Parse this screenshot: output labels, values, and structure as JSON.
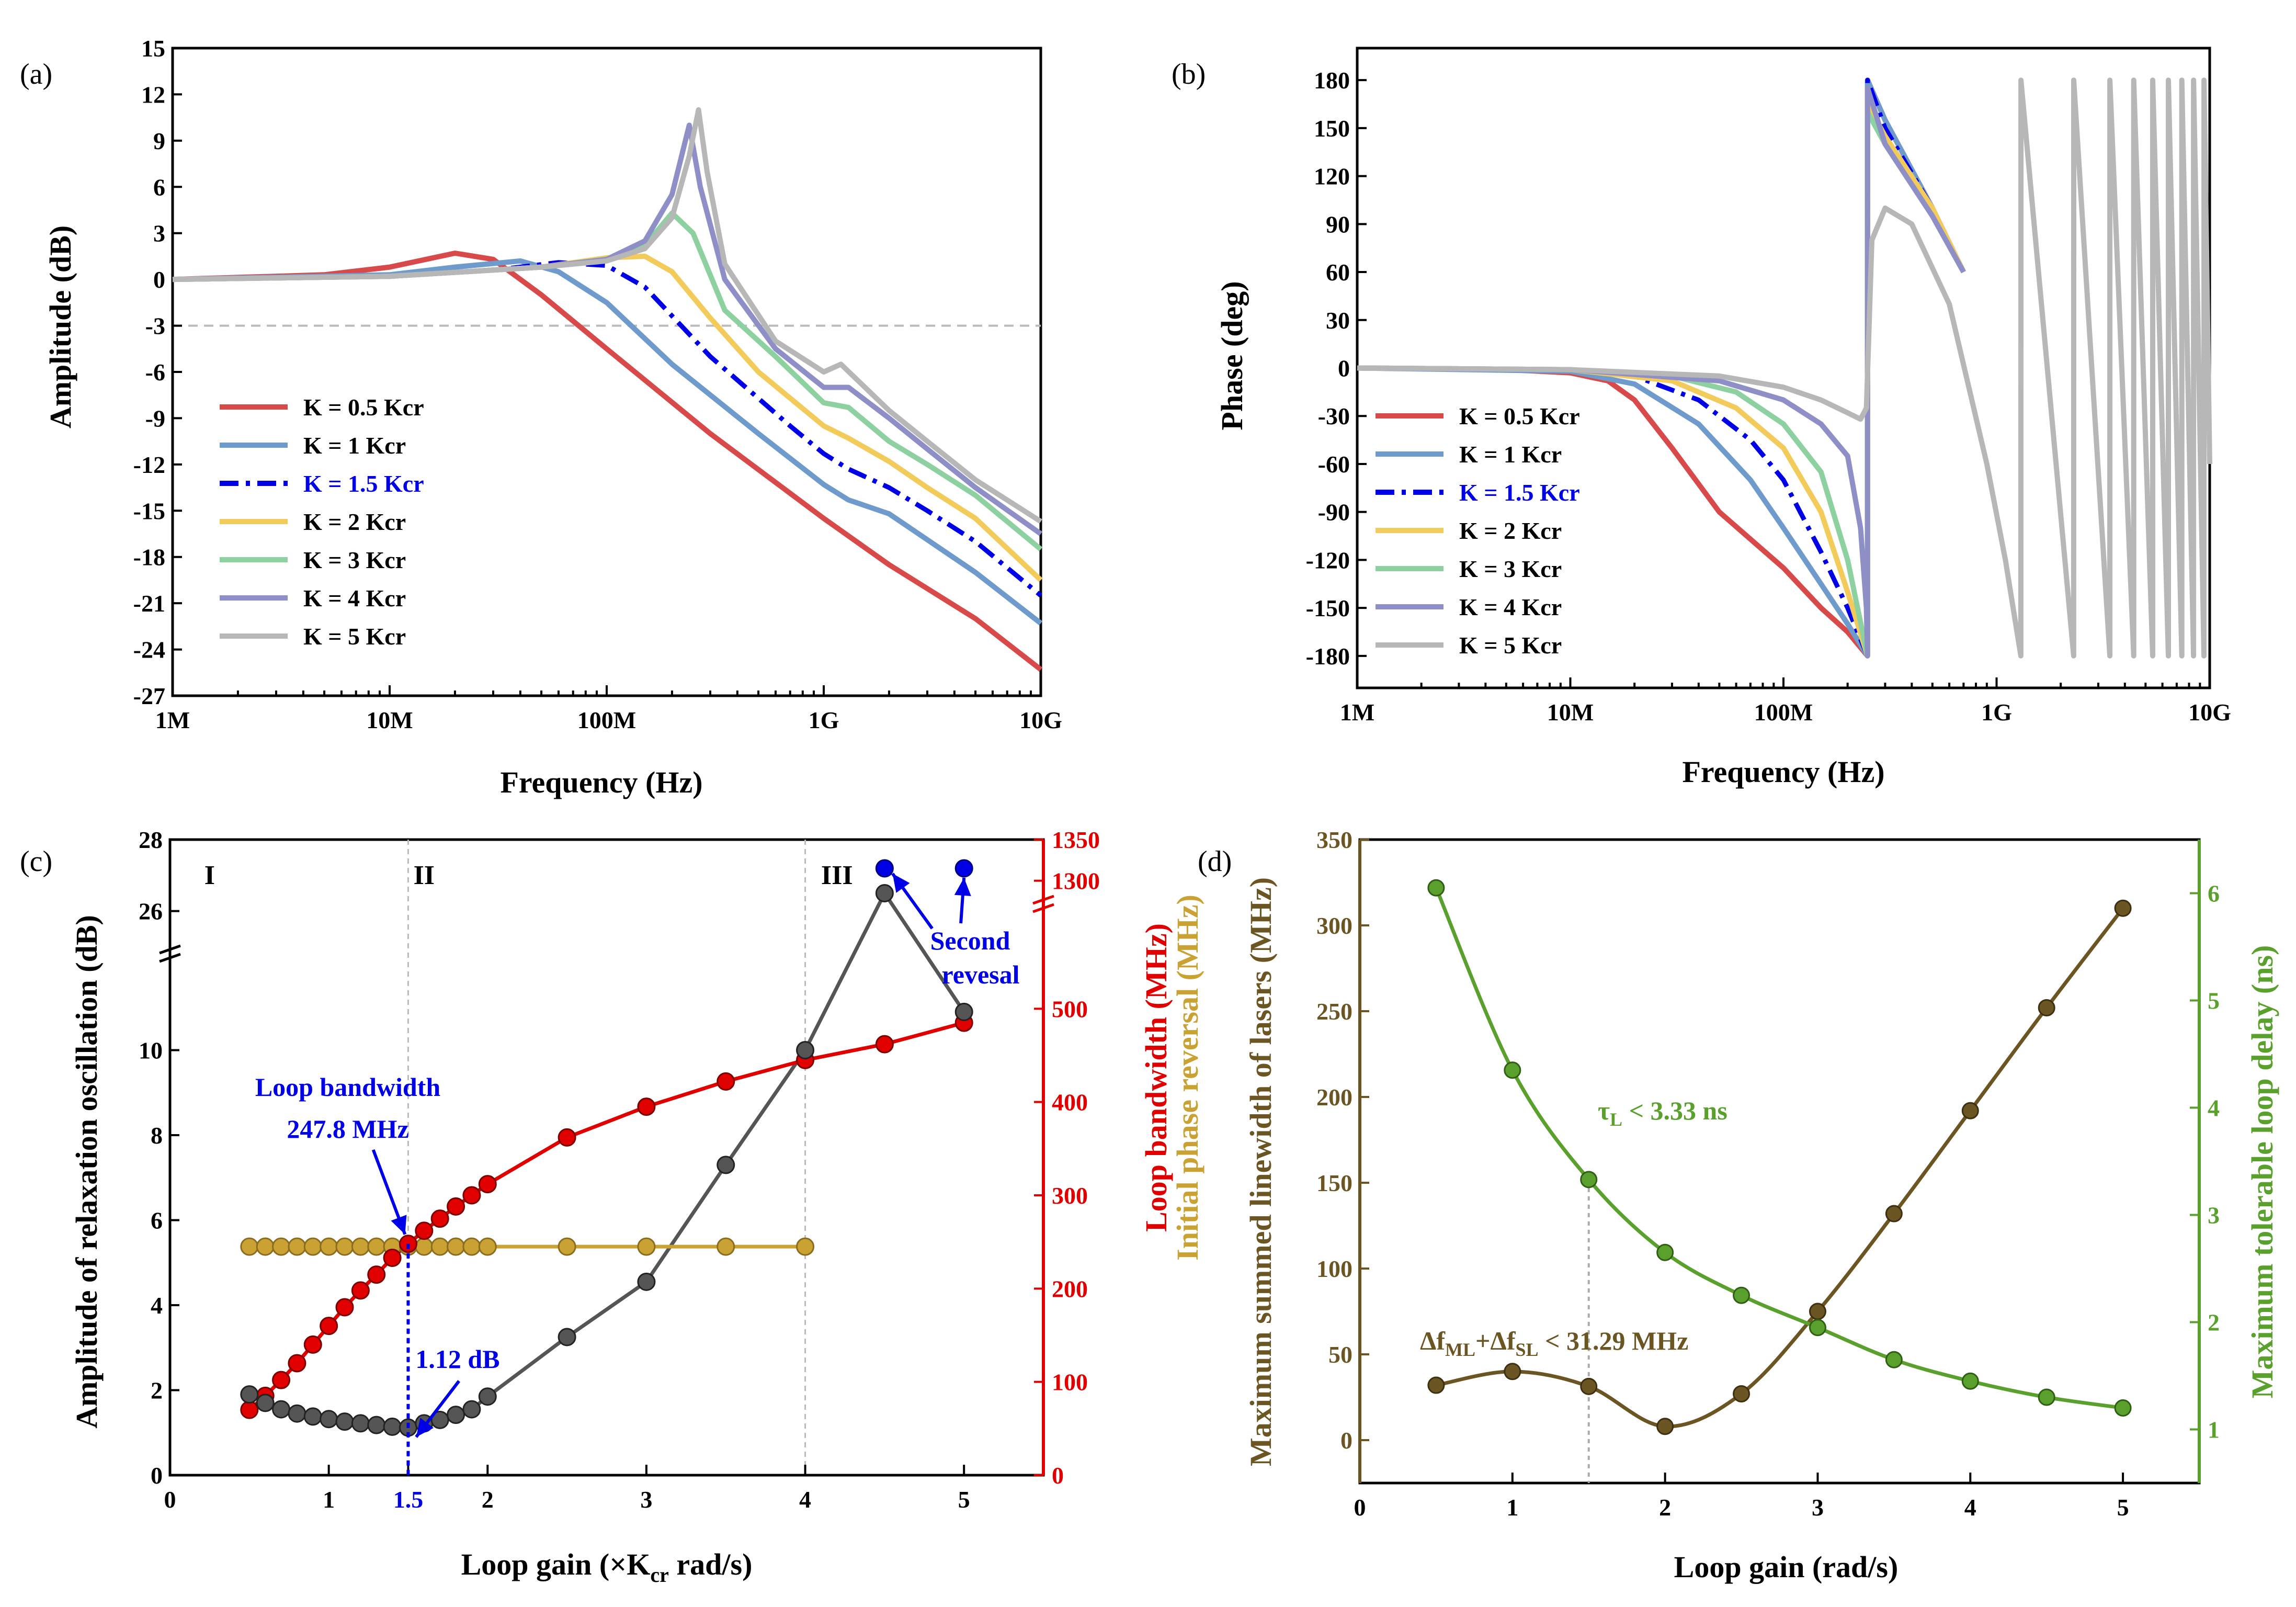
{
  "colors": {
    "red": "#d84a4a",
    "steel": "#6e9bcc",
    "blue": "#0000e6",
    "gold": "#f2cb5a",
    "green": "#8ed1a0",
    "purple": "#8f8fc8",
    "gray": "#b7b7b7",
    "darkgray": "#555555",
    "darkred": "#e00000",
    "mustard": "#c9a233",
    "olive": "#6b5522",
    "leaf": "#5aa02c"
  },
  "chart_data": [
    {
      "type": "line",
      "panel_label": "(a)",
      "title": "",
      "xlabel": "Frequency (Hz)",
      "ylabel": "Amplitude (dB)",
      "xscale": "log",
      "xlim": [
        1000000,
        10000000000
      ],
      "ylim": [
        -27,
        15
      ],
      "xticks": [
        {
          "value": 1000000,
          "label": "1M"
        },
        {
          "value": 10000000,
          "label": "10M"
        },
        {
          "value": 100000000,
          "label": "100M"
        },
        {
          "value": 1000000000,
          "label": "1G"
        },
        {
          "value": 10000000000,
          "label": "10G"
        }
      ],
      "yticks": [
        15,
        12,
        9,
        6,
        3,
        0,
        -3,
        -6,
        -9,
        -12,
        -15,
        -18,
        -21,
        -24,
        -27
      ],
      "reference_line": {
        "y": -3,
        "style": "dashed"
      },
      "legend_position": "lower-left",
      "series": [
        {
          "name": "K = 0.5 Kcr",
          "color_key": "red",
          "dash": "solid",
          "x": [
            1000000,
            5000000,
            10000000,
            20000000,
            30000000,
            50000000,
            100000000,
            300000000,
            1000000000,
            2000000000,
            5000000000,
            10000000000
          ],
          "y": [
            0,
            0.3,
            0.8,
            1.7,
            1.3,
            -1,
            -4.5,
            -10,
            -15.5,
            -18.5,
            -22,
            -25.3
          ]
        },
        {
          "name": "K = 1 Kcr",
          "color_key": "steel",
          "dash": "solid",
          "x": [
            1000000,
            10000000,
            20000000,
            40000000,
            60000000,
            100000000,
            200000000,
            500000000,
            1000000000,
            1300000000,
            2000000000,
            5000000000,
            10000000000
          ],
          "y": [
            0,
            0.3,
            0.8,
            1.2,
            0.5,
            -1.5,
            -5.5,
            -10,
            -13.3,
            -14.3,
            -15.2,
            -19,
            -22.3
          ]
        },
        {
          "name": "K = 1.5 Kcr",
          "color_key": "blue",
          "dash": "dashdot",
          "x": [
            1000000,
            10000000,
            30000000,
            60000000,
            100000000,
            150000000,
            300000000,
            700000000,
            1000000000,
            1300000000,
            2000000000,
            3000000000,
            5000000000,
            10000000000
          ],
          "y": [
            0,
            0.2,
            0.6,
            1.1,
            0.9,
            -0.5,
            -5,
            -9.5,
            -11.3,
            -12.3,
            -13.5,
            -15,
            -17,
            -20.5
          ]
        },
        {
          "name": "K = 2 Kcr",
          "color_key": "gold",
          "dash": "solid",
          "x": [
            1000000,
            10000000,
            50000000,
            100000000,
            150000000,
            200000000,
            300000000,
            500000000,
            1000000000,
            1300000000,
            2000000000,
            3000000000,
            5000000000,
            10000000000
          ],
          "y": [
            0,
            0.2,
            0.8,
            1.4,
            1.5,
            0.5,
            -2.5,
            -6,
            -9.5,
            -10.3,
            -11.8,
            -13.5,
            -15.5,
            -19.5
          ]
        },
        {
          "name": "K = 3 Kcr",
          "color_key": "green",
          "dash": "solid",
          "x": [
            1000000,
            10000000,
            50000000,
            100000000,
            150000000,
            200000000,
            250000000,
            350000000,
            600000000,
            1000000000,
            1300000000,
            2000000000,
            3000000000,
            5000000000,
            10000000000
          ],
          "y": [
            0,
            0.2,
            0.8,
            1.3,
            2.2,
            4.3,
            3,
            -2,
            -5,
            -8,
            -8.3,
            -10.5,
            -12,
            -14,
            -17.5
          ]
        },
        {
          "name": "K = 4 Kcr",
          "color_key": "purple",
          "dash": "solid",
          "x": [
            1000000,
            10000000,
            50000000,
            100000000,
            150000000,
            200000000,
            240000000,
            270000000,
            350000000,
            600000000,
            1000000000,
            1300000000,
            2000000000,
            3000000000,
            5000000000,
            10000000000
          ],
          "y": [
            0,
            0.2,
            0.8,
            1.3,
            2.5,
            5.5,
            10,
            6,
            0,
            -4.5,
            -7,
            -7,
            -9,
            -11,
            -13.5,
            -16.5
          ]
        },
        {
          "name": "K = 5 Kcr",
          "color_key": "gray",
          "dash": "solid",
          "x": [
            1000000,
            10000000,
            50000000,
            100000000,
            150000000,
            200000000,
            240000000,
            265000000,
            290000000,
            350000000,
            600000000,
            1000000000,
            1200000000,
            2000000000,
            3000000000,
            5000000000,
            10000000000
          ],
          "y": [
            0,
            0.2,
            0.8,
            1.2,
            2,
            4,
            8,
            11,
            7,
            1,
            -4,
            -6,
            -5.5,
            -8.5,
            -10.5,
            -13,
            -15.7
          ]
        }
      ]
    },
    {
      "type": "line",
      "panel_label": "(b)",
      "title": "",
      "xlabel": "Frequency (Hz)",
      "ylabel": "Phase (deg)",
      "xscale": "log",
      "xlim": [
        1000000,
        10000000000
      ],
      "ylim": [
        -200,
        200
      ],
      "xticks": [
        {
          "value": 1000000,
          "label": "1M"
        },
        {
          "value": 10000000,
          "label": "10M"
        },
        {
          "value": 100000000,
          "label": "100M"
        },
        {
          "value": 1000000000,
          "label": "1G"
        },
        {
          "value": 10000000000,
          "label": "10G"
        }
      ],
      "yticks": [
        180,
        150,
        120,
        90,
        60,
        30,
        0,
        -30,
        -60,
        -90,
        -120,
        -150,
        -180
      ],
      "legend_position": "lower-left",
      "series": [
        {
          "name": "K = 0.5 Kcr",
          "color_key": "red",
          "dash": "solid",
          "x": [
            1000000,
            5000000,
            10000000,
            15000000,
            20000000,
            30000000,
            50000000,
            100000000,
            150000000,
            200000000,
            248000000,
            248100000,
            300000000,
            500000000,
            700000000
          ],
          "y": [
            0,
            -1,
            -3,
            -8,
            -20,
            -50,
            -90,
            -125,
            -150,
            -165,
            -180,
            180,
            155,
            100,
            60
          ]
        },
        {
          "name": "K = 1 Kcr",
          "color_key": "steel",
          "dash": "solid",
          "x": [
            1000000,
            10000000,
            20000000,
            40000000,
            70000000,
            100000000,
            150000000,
            200000000,
            248000000,
            248100000,
            300000000,
            500000000,
            700000000
          ],
          "y": [
            0,
            -2,
            -10,
            -35,
            -70,
            -100,
            -135,
            -160,
            -180,
            180,
            155,
            100,
            60
          ]
        },
        {
          "name": "K = 1.5 Kcr",
          "color_key": "blue",
          "dash": "dashdot",
          "x": [
            1000000,
            10000000,
            20000000,
            40000000,
            70000000,
            100000000,
            150000000,
            200000000,
            248000000,
            248100000,
            300000000,
            500000000,
            700000000
          ],
          "y": [
            0,
            -1,
            -5,
            -20,
            -45,
            -70,
            -115,
            -150,
            -180,
            180,
            150,
            100,
            60
          ]
        },
        {
          "name": "K = 2 Kcr",
          "color_key": "gold",
          "dash": "solid",
          "x": [
            1000000,
            10000000,
            30000000,
            60000000,
            100000000,
            150000000,
            200000000,
            248000000,
            248100000,
            300000000,
            500000000,
            700000000
          ],
          "y": [
            0,
            -1,
            -8,
            -25,
            -50,
            -90,
            -140,
            -180,
            165,
            145,
            100,
            60
          ]
        },
        {
          "name": "K = 3 Kcr",
          "color_key": "green",
          "dash": "solid",
          "x": [
            1000000,
            10000000,
            30000000,
            60000000,
            100000000,
            150000000,
            200000000,
            248000000,
            248100000,
            300000000,
            500000000,
            700000000
          ],
          "y": [
            0,
            -1,
            -5,
            -15,
            -35,
            -65,
            -120,
            -180,
            160,
            140,
            95,
            60
          ]
        },
        {
          "name": "K = 4 Kcr",
          "color_key": "purple",
          "dash": "solid",
          "x": [
            1000000,
            10000000,
            50000000,
            100000000,
            150000000,
            200000000,
            230000000,
            245000000,
            248000000,
            248100000,
            300000000,
            500000000,
            700000000
          ],
          "y": [
            0,
            -1,
            -8,
            -20,
            -35,
            -55,
            -100,
            -150,
            -180,
            175,
            140,
            95,
            60
          ]
        },
        {
          "name": "K = 5 Kcr",
          "color_key": "gray",
          "dash": "solid",
          "x": [
            1000000,
            10000000,
            50000000,
            100000000,
            150000000,
            200000000,
            230000000,
            245000000,
            260000000,
            300000000,
            400000000,
            600000000,
            900000000,
            1100000000,
            1300000000,
            1301000000,
            2300000000,
            2301000000,
            3400000000,
            3401000000,
            4400000000,
            4401000000,
            5400000000,
            5401000000,
            6400000000,
            6401000000,
            7400000000,
            7401000000,
            8400000000,
            8401000000,
            9400000000,
            9401000000,
            10000000000
          ],
          "y": [
            0,
            -1,
            -5,
            -12,
            -20,
            -28,
            -32,
            -25,
            80,
            100,
            90,
            40,
            -60,
            -120,
            -180,
            180,
            -180,
            180,
            -180,
            180,
            -180,
            180,
            -180,
            180,
            -180,
            180,
            -180,
            180,
            -180,
            180,
            -180,
            180,
            -60
          ]
        }
      ]
    },
    {
      "type": "scatter",
      "panel_label": "(c)",
      "title": "",
      "xlabel": "Loop gain (×K",
      "xlabel_sub": "cr",
      "xlabel_tail": " rad/s)",
      "ylabel_left": "Amplitude of relaxation oscillation (dB)",
      "ylabel_right_1": "Loop bandwidth (MHz)",
      "ylabel_right_2": "Initial phase reversal (MHz)",
      "xlim": [
        0,
        5.5
      ],
      "xticks": [
        0,
        1,
        1.5,
        2,
        3,
        4,
        5
      ],
      "xtick_labels": [
        "0",
        "1",
        "1.5",
        "2",
        "3",
        "4",
        "5"
      ],
      "ylim_left_lower": [
        0,
        12
      ],
      "ylim_left_upper": [
        25,
        28
      ],
      "yticks_left": [
        0,
        2,
        4,
        6,
        8,
        10,
        26,
        28
      ],
      "ylim_right_lower": [
        0,
        600
      ],
      "ylim_right_upper": [
        1280,
        1350
      ],
      "yticks_right": [
        0,
        100,
        200,
        300,
        400,
        500,
        1300,
        1350
      ],
      "regions": [
        {
          "label": "I",
          "x": 0.25
        },
        {
          "label": "II",
          "x": 1.6
        },
        {
          "label": "III",
          "x": 4.2
        }
      ],
      "region_lines": [
        1.5,
        4
      ],
      "series": [
        {
          "name": "Amplitude of relaxation oscillation",
          "axis": "left",
          "color_key": "darkgray",
          "x": [
            0.5,
            0.6,
            0.7,
            0.8,
            0.9,
            1.0,
            1.1,
            1.2,
            1.3,
            1.4,
            1.5,
            1.6,
            1.7,
            1.8,
            1.9,
            2.0,
            2.5,
            3.0,
            3.5,
            4.0,
            4.5,
            5.0
          ],
          "y": [
            1.9,
            1.7,
            1.55,
            1.45,
            1.38,
            1.32,
            1.26,
            1.22,
            1.18,
            1.14,
            1.12,
            1.22,
            1.3,
            1.42,
            1.55,
            1.85,
            3.25,
            4.55,
            7.3,
            10.0,
            26.5,
            10.9
          ]
        },
        {
          "name": "Loop bandwidth",
          "axis": "right",
          "color_key": "darkred",
          "x": [
            0.5,
            0.6,
            0.7,
            0.8,
            0.9,
            1.0,
            1.1,
            1.2,
            1.3,
            1.4,
            1.5,
            1.6,
            1.7,
            1.8,
            1.9,
            2.0,
            2.5,
            3.0,
            3.5,
            4.0,
            4.5,
            5.0
          ],
          "y": [
            70,
            85,
            102,
            120,
            140,
            160,
            180,
            198,
            215,
            233,
            248,
            262,
            275,
            288,
            300,
            312,
            362,
            395,
            422,
            445,
            462,
            485
          ]
        },
        {
          "name": "Initial phase reversal",
          "axis": "right",
          "color_key": "mustard",
          "x": [
            0.5,
            0.6,
            0.7,
            0.8,
            0.9,
            1.0,
            1.1,
            1.2,
            1.3,
            1.4,
            1.5,
            1.6,
            1.7,
            1.8,
            1.9,
            2.0,
            2.5,
            3.0,
            3.5,
            4.0
          ],
          "y": [
            245,
            245,
            245,
            245,
            245,
            245,
            245,
            245,
            245,
            245,
            245,
            245,
            245,
            245,
            245,
            245,
            245,
            245,
            245,
            245
          ]
        },
        {
          "name": "Second reversal",
          "axis": "right",
          "color_key": "blue",
          "x": [
            4.5,
            5.0
          ],
          "y": [
            1315,
            1315
          ]
        }
      ],
      "annotations": {
        "loop_bandwidth_title": "Loop bandwidth",
        "loop_bandwidth_value": "247.8 MHz",
        "dip_value": "1.12 dB",
        "second_1": "Second",
        "second_2": "revesal"
      }
    },
    {
      "type": "line",
      "panel_label": "(d)",
      "title": "",
      "xlabel": "Loop gain (rad/s)",
      "ylabel_left": "Maximum summed linewidth of lasers (MHz)",
      "ylabel_right": "Maximum tolerable loop delay (ns)",
      "xlim": [
        0,
        5.5
      ],
      "xticks": [
        0,
        1,
        2,
        3,
        4,
        5
      ],
      "ylim_left": [
        -25,
        350
      ],
      "yticks_left": [
        0,
        50,
        100,
        150,
        200,
        250,
        300,
        350
      ],
      "ylim_right": [
        0.5,
        6.5
      ],
      "yticks_right": [
        1,
        2,
        3,
        4,
        5,
        6
      ],
      "guide_x": 1.5,
      "series": [
        {
          "name": "Maximum summed linewidth",
          "axis": "left",
          "color_key": "olive",
          "x": [
            0.5,
            1.0,
            1.5,
            2.0,
            2.5,
            3.0,
            3.5,
            4.0,
            4.5,
            5.0
          ],
          "y": [
            32,
            40,
            31.29,
            8,
            27,
            75,
            132,
            192,
            252,
            310
          ]
        },
        {
          "name": "Maximum tolerable loop delay",
          "axis": "right",
          "color_key": "leaf",
          "x": [
            0.5,
            1.0,
            1.5,
            2.0,
            2.5,
            3.0,
            3.5,
            4.0,
            4.5,
            5.0
          ],
          "y": [
            6.05,
            4.35,
            3.33,
            2.65,
            2.25,
            1.95,
            1.65,
            1.45,
            1.3,
            1.2
          ]
        }
      ],
      "annotations": {
        "tau": "τ",
        "tau_sub": "L",
        "tau_tail": " < 3.33 ns",
        "df_1": "Δf",
        "df_sub1": "ML",
        "df_2": "+Δf",
        "df_sub2": "SL",
        "df_tail": " < 31.29 MHz"
      }
    }
  ]
}
